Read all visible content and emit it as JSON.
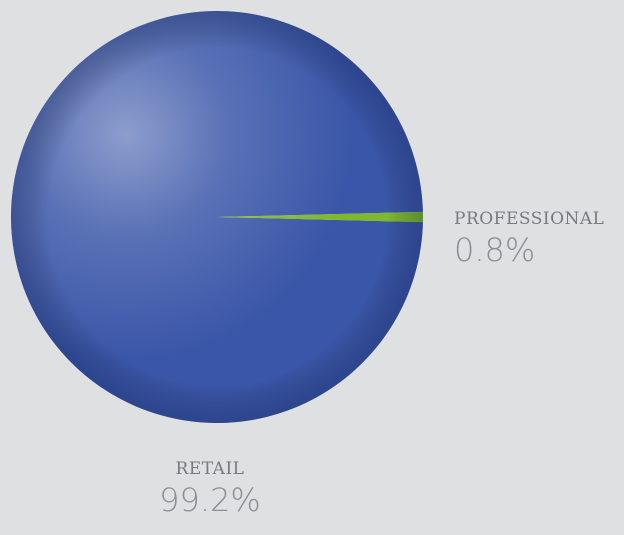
{
  "chart_data": {
    "type": "pie",
    "title": "",
    "slices": [
      {
        "label": "RETAIL",
        "value": 99.2,
        "display": "99.2%",
        "color": "#3a56a8"
      },
      {
        "label": "PROFESSIONAL",
        "value": 0.8,
        "display": "0.8%",
        "color": "#7fb82f"
      }
    ],
    "legend": "labels beside slices",
    "colors": {
      "background": "#dfe0e2",
      "label_text": "#777a7e",
      "value_text": "#8b8e92"
    }
  }
}
